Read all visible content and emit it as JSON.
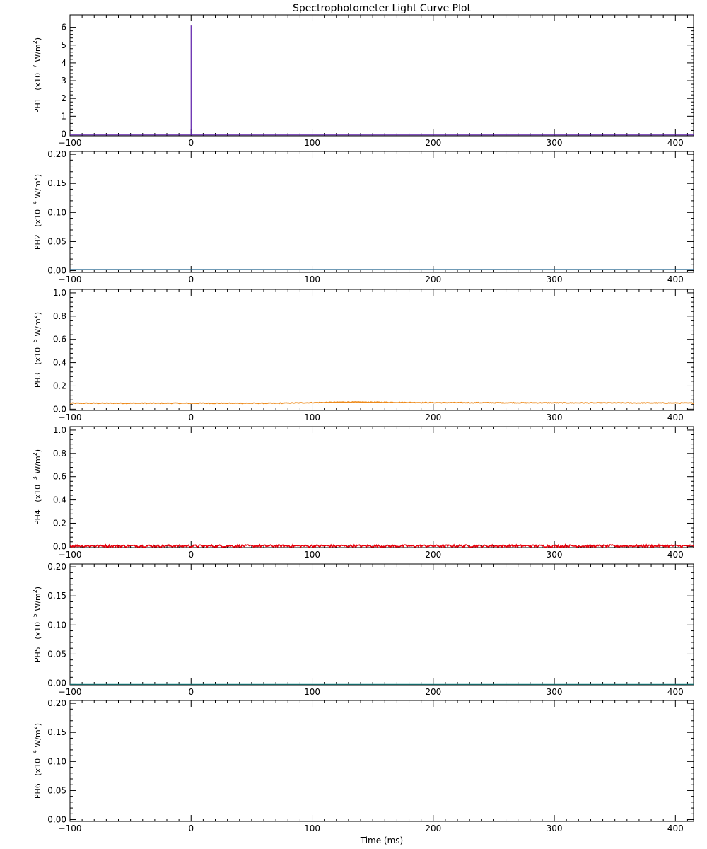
{
  "chart_data": {
    "type": "line",
    "title": "Spectrophotometer Light Curve Plot",
    "xlabel": "Time (ms)",
    "xlim": [
      -100,
      415
    ],
    "xticks": [
      -100,
      0,
      100,
      200,
      300,
      400
    ],
    "x_tick_labels": [
      "−100",
      "0",
      "100",
      "200",
      "300",
      "400"
    ],
    "panels": [
      {
        "name": "PH1",
        "unit_prefix": "(x10",
        "unit_exp": "−7",
        "unit_suffix": " W/m",
        "unit_sq": "2",
        "unit_close": ")",
        "ylim": [
          -0.1,
          6.7
        ],
        "yticks": [
          0,
          1,
          2,
          3,
          4,
          5,
          6
        ],
        "y_tick_labels": [
          "0",
          "1",
          "2",
          "3",
          "4",
          "5",
          "6"
        ],
        "color": "#5a1aa8",
        "baseline": -0.05,
        "noise": 0,
        "trend": [],
        "spike": {
          "x": 0,
          "y": 6.1
        }
      },
      {
        "name": "PH2",
        "unit_prefix": "(x10",
        "unit_exp": "−4",
        "unit_suffix": " W/m",
        "unit_sq": "2",
        "unit_close": ")",
        "ylim": [
          -0.003,
          0.205
        ],
        "yticks": [
          0.0,
          0.05,
          0.1,
          0.15,
          0.2
        ],
        "y_tick_labels": [
          "0.00",
          "0.05",
          "0.10",
          "0.15",
          "0.20"
        ],
        "color": "#1a5f8a",
        "baseline": 0.002,
        "noise": 0,
        "trend": [],
        "spike": null
      },
      {
        "name": "PH3",
        "unit_prefix": "(x10",
        "unit_exp": "−5",
        "unit_suffix": " W/m",
        "unit_sq": "2",
        "unit_close": ")",
        "ylim": [
          -0.01,
          1.03
        ],
        "yticks": [
          0.0,
          0.2,
          0.4,
          0.6,
          0.8,
          1.0
        ],
        "y_tick_labels": [
          "0.0",
          "0.2",
          "0.4",
          "0.6",
          "0.8",
          "1.0"
        ],
        "color": "#ee8a1a",
        "baseline": 0.05,
        "noise": 0.006,
        "trend": [
          [
            -100,
            0.05
          ],
          [
            70,
            0.05
          ],
          [
            130,
            0.06
          ],
          [
            200,
            0.055
          ],
          [
            415,
            0.052
          ]
        ],
        "spike": null
      },
      {
        "name": "PH4",
        "unit_prefix": "(x10",
        "unit_exp": "−3",
        "unit_suffix": " W/m",
        "unit_sq": "2",
        "unit_close": ")",
        "ylim": [
          -0.01,
          1.03
        ],
        "yticks": [
          0.0,
          0.2,
          0.4,
          0.6,
          0.8,
          1.0
        ],
        "y_tick_labels": [
          "0.0",
          "0.2",
          "0.4",
          "0.6",
          "0.8",
          "1.0"
        ],
        "color": "#e8000c",
        "baseline": 0.0,
        "noise": 0.02,
        "trend": [],
        "spike": null
      },
      {
        "name": "PH5",
        "unit_prefix": "(x10",
        "unit_exp": "−5",
        "unit_suffix": " W/m",
        "unit_sq": "2",
        "unit_close": ")",
        "ylim": [
          -0.003,
          0.205
        ],
        "yticks": [
          0.0,
          0.05,
          0.1,
          0.15,
          0.2
        ],
        "y_tick_labels": [
          "0.00",
          "0.05",
          "0.10",
          "0.15",
          "0.20"
        ],
        "color": "#1a8a8a",
        "baseline": -0.002,
        "noise": 0,
        "trend": [],
        "spike": null
      },
      {
        "name": "PH6",
        "unit_prefix": "(x10",
        "unit_exp": "−4",
        "unit_suffix": " W/m",
        "unit_sq": "2",
        "unit_close": ")",
        "ylim": [
          -0.003,
          0.205
        ],
        "yticks": [
          0.0,
          0.05,
          0.1,
          0.15,
          0.2
        ],
        "y_tick_labels": [
          "0.00",
          "0.05",
          "0.10",
          "0.15",
          "0.20"
        ],
        "color": "#3aa0e0",
        "baseline": 0.056,
        "noise": 0,
        "trend": [],
        "spike": null
      }
    ]
  }
}
